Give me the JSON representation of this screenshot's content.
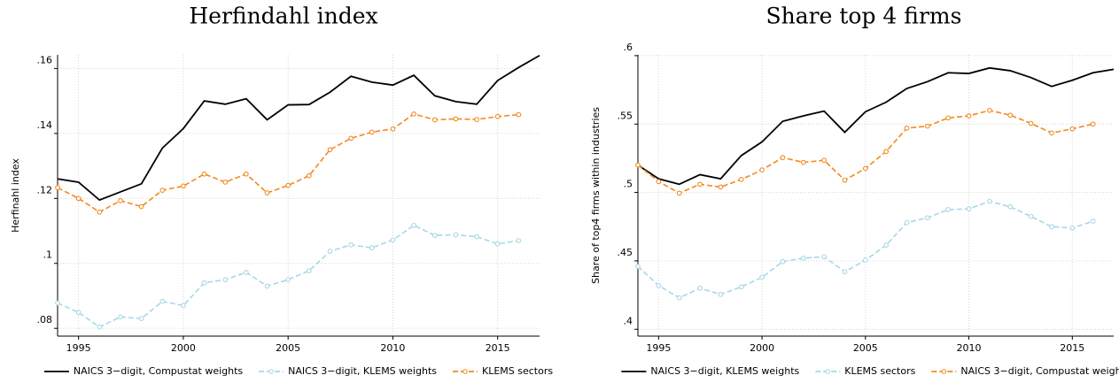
{
  "chart_data": [
    {
      "type": "line",
      "title": "Herfindahl index",
      "y_label": "Herfinahl index",
      "x": [
        1994,
        1995,
        1996,
        1997,
        1998,
        1999,
        2000,
        2001,
        2002,
        2003,
        2004,
        2005,
        2006,
        2007,
        2008,
        2009,
        2010,
        2011,
        2012,
        2013,
        2014,
        2015,
        2016,
        2017
      ],
      "xlim": [
        1994,
        2017
      ],
      "xticks": [
        1995,
        2000,
        2005,
        2010,
        2015
      ],
      "ylim": [
        0.0776,
        0.1642
      ],
      "yticks": [
        {
          "value": 0.08,
          "label": ".08"
        },
        {
          "value": 0.1,
          "label": ".1"
        },
        {
          "value": 0.12,
          "label": ".12"
        },
        {
          "value": 0.14,
          "label": ".14"
        },
        {
          "value": 0.16,
          "label": ".16"
        }
      ],
      "grid": true,
      "series": [
        {
          "name": "NAICS 3−digit, Compustat weights",
          "color": "#000000",
          "dash": "solid",
          "marker": false,
          "values": [
            0.126,
            0.125,
            0.1195,
            0.122,
            0.1245,
            0.1355,
            0.1415,
            0.15,
            0.149,
            0.1507,
            0.1442,
            0.1488,
            0.1489,
            0.1527,
            0.1576,
            0.1558,
            0.1549,
            0.1579,
            0.1516,
            0.1498,
            0.149,
            0.1563,
            0.1603,
            0.164
          ]
        },
        {
          "name": "NAICS 3−digit, KLEMS weights",
          "color": "#a8d8e6",
          "dash": "dashed",
          "marker": true,
          "values": [
            0.0878,
            0.0849,
            0.0804,
            0.0835,
            0.083,
            0.0883,
            0.087,
            0.094,
            0.095,
            0.0972,
            0.093,
            0.095,
            0.0977,
            0.1037,
            0.1057,
            0.1048,
            0.1072,
            0.1117,
            0.1086,
            0.1088,
            0.1082,
            0.106,
            0.107,
            null
          ]
        },
        {
          "name": "KLEMS sectors",
          "color": "#f28a1e",
          "dash": "dashed",
          "marker": true,
          "values": [
            0.1233,
            0.12,
            0.1158,
            0.1193,
            0.1175,
            0.1225,
            0.1238,
            0.1275,
            0.125,
            0.1275,
            0.1217,
            0.124,
            0.127,
            0.135,
            0.1385,
            0.1404,
            0.1414,
            0.146,
            0.1442,
            0.1445,
            0.1443,
            0.1452,
            0.1458,
            null
          ]
        }
      ]
    },
    {
      "type": "line",
      "title": "Share top 4 firms",
      "y_label": "Share of top4 firms within industries",
      "x": [
        1994,
        1995,
        1996,
        1997,
        1998,
        1999,
        2000,
        2001,
        2002,
        2003,
        2004,
        2005,
        2006,
        2007,
        2008,
        2009,
        2010,
        2011,
        2012,
        2013,
        2014,
        2015,
        2016,
        2017
      ],
      "xlim": [
        1994,
        2017
      ],
      "xticks": [
        1995,
        2000,
        2005,
        2010,
        2015
      ],
      "ylim": [
        0.395,
        0.6006
      ],
      "yticks": [
        {
          "value": 0.4,
          "label": ".4"
        },
        {
          "value": 0.45,
          "label": ".45"
        },
        {
          "value": 0.5,
          "label": ".5"
        },
        {
          "value": 0.55,
          "label": ".55"
        },
        {
          "value": 0.6,
          "label": ".6"
        }
      ],
      "grid": true,
      "series": [
        {
          "name": "NAICS 3−digit, KLEMS weights",
          "color": "#000000",
          "dash": "solid",
          "marker": false,
          "values": [
            0.52,
            0.51,
            0.506,
            0.513,
            0.51,
            0.527,
            0.537,
            0.552,
            0.556,
            0.5595,
            0.544,
            0.559,
            0.566,
            0.576,
            0.581,
            0.5875,
            0.587,
            0.591,
            0.589,
            0.584,
            0.5775,
            0.582,
            0.5875,
            0.59
          ]
        },
        {
          "name": "KLEMS sectors",
          "color": "#a8d8e6",
          "dash": "dashed",
          "marker": true,
          "values": [
            0.446,
            0.432,
            0.423,
            0.43,
            0.4255,
            0.431,
            0.438,
            0.4495,
            0.452,
            0.453,
            0.442,
            0.4505,
            0.4615,
            0.478,
            0.4815,
            0.4875,
            0.488,
            0.4935,
            0.4895,
            0.4825,
            0.475,
            0.474,
            0.479,
            null
          ]
        },
        {
          "name": "NAICS 3−digit, Compustat weights",
          "color": "#f28a1e",
          "dash": "dashed",
          "marker": true,
          "values": [
            0.52,
            0.508,
            0.4995,
            0.506,
            0.504,
            0.5095,
            0.5165,
            0.5255,
            0.522,
            0.5235,
            0.509,
            0.5175,
            0.53,
            0.547,
            0.5485,
            0.5545,
            0.556,
            0.56,
            0.5565,
            0.5505,
            0.5435,
            0.5465,
            0.55,
            null
          ]
        }
      ]
    }
  ]
}
